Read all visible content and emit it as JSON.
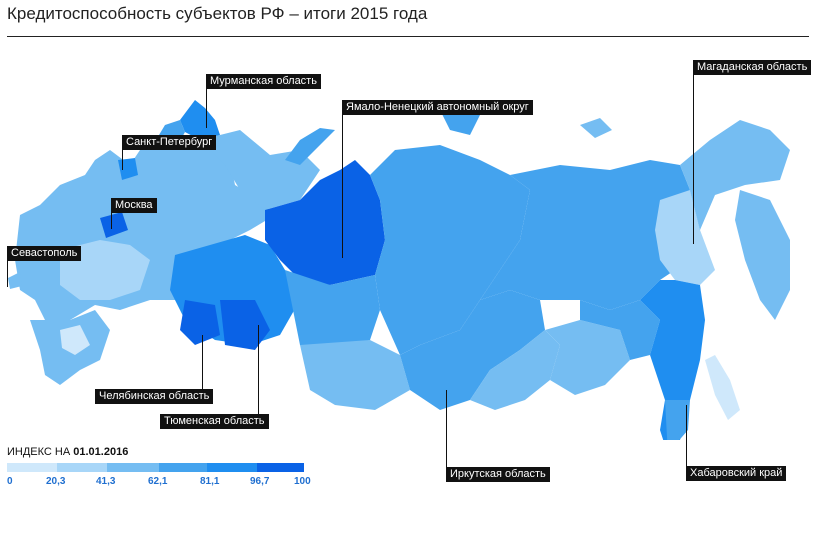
{
  "title": "Кредитоспособность субъектов РФ – итоги 2015 года",
  "labels": {
    "murmansk": "Мурманская область",
    "yamal": "Ямало-Ненецкий автономный округ",
    "magadan": "Магаданская область",
    "spb": "Санкт-Петербург",
    "moscow": "Москва",
    "sevastopol": "Севастополь",
    "chelyabinsk": "Челябинская область",
    "tyumen": "Тюменская область",
    "irkutsk": "Иркутская область",
    "khabarovsk": "Хабаровский край"
  },
  "legend": {
    "title_prefix": "ИНДЕКС НА ",
    "title_date": "01.01.2016",
    "ticks": [
      "0",
      "20,3",
      "41,3",
      "62,1",
      "81,1",
      "96,7",
      "100"
    ],
    "colors": [
      "#cfe8fb",
      "#a8d6f8",
      "#75bdf2",
      "#44a3ee",
      "#1f8ef0",
      "#0a62e6"
    ]
  },
  "colors": {
    "ocean_bg": "#ffffff",
    "label_bg": "#111111"
  }
}
